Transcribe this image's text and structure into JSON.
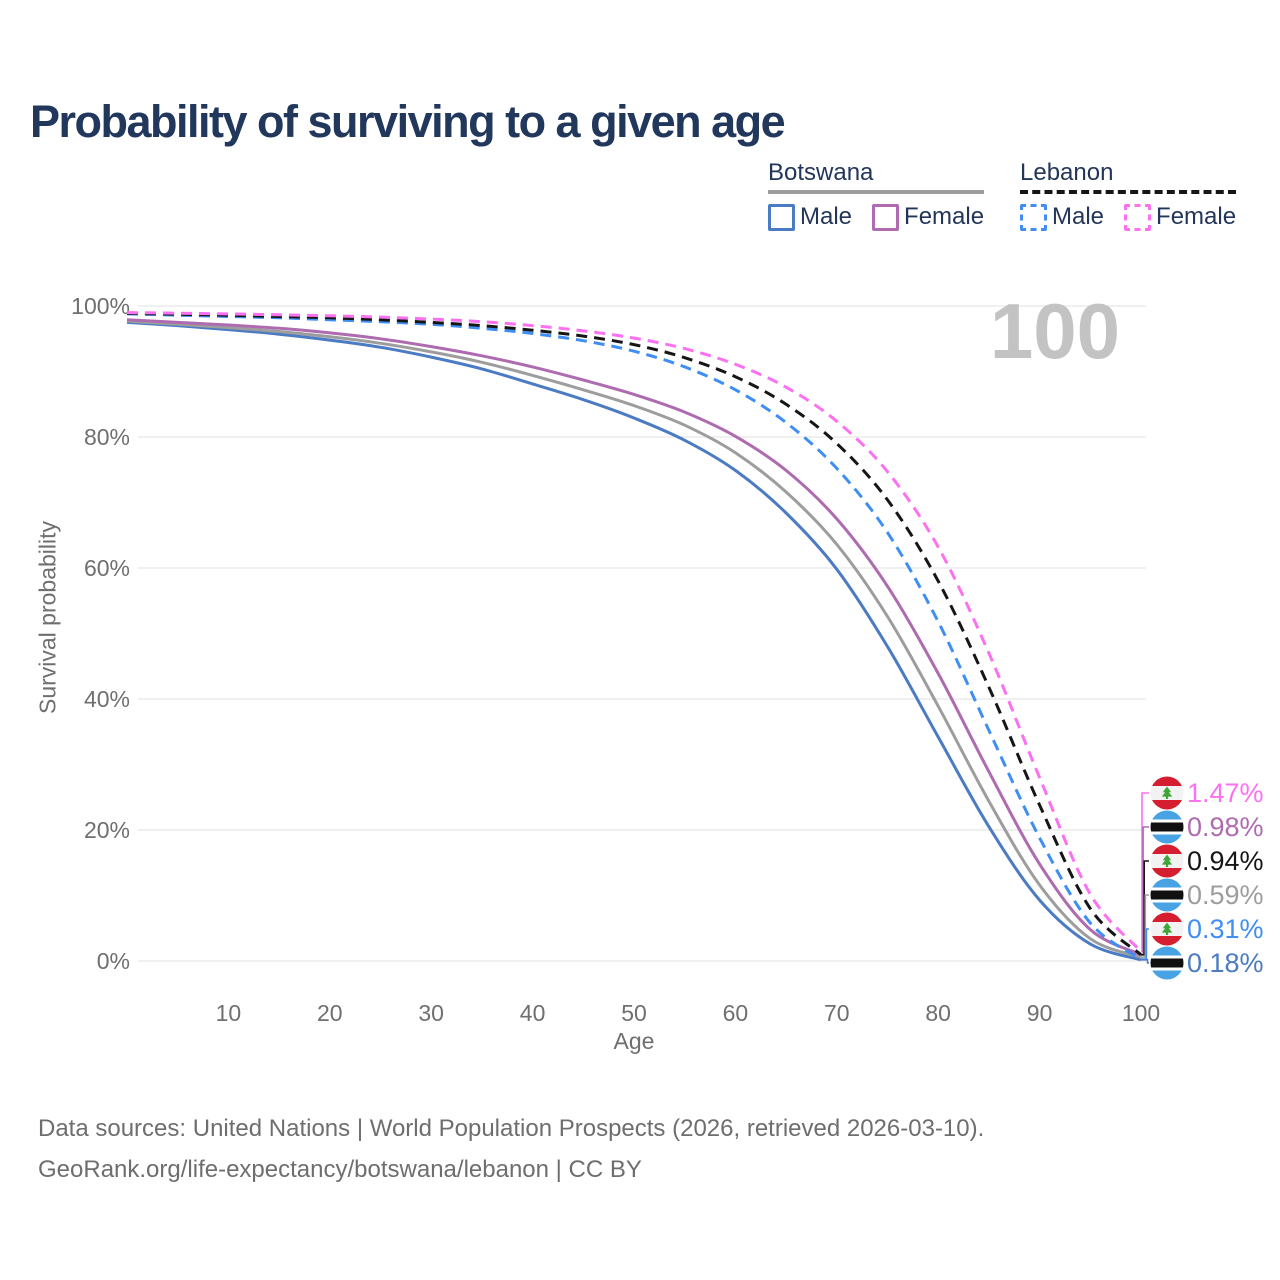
{
  "page": {
    "title": "Probability of surviving to a given age",
    "watermark_age": "100",
    "source_line1": "Data sources: United Nations | World Population Prospects (2026, retrieved 2026-03-10).",
    "source_line2": "GeoRank.org/life-expectancy/botswana/lebanon | CC BY"
  },
  "legend": {
    "groups": [
      {
        "name": "Botswana",
        "line_style": "solid",
        "sample_color": "#9d9d9d",
        "items": [
          {
            "label": "Male",
            "color": "#4b7bc3",
            "dash": false
          },
          {
            "label": "Female",
            "color": "#ae6bb0",
            "dash": false
          }
        ]
      },
      {
        "name": "Lebanon",
        "line_style": "dashed",
        "sample_color": "#161616",
        "items": [
          {
            "label": "Male",
            "color": "#3f8ef4",
            "dash": true
          },
          {
            "label": "Female",
            "color": "#fc70f2",
            "dash": true
          }
        ]
      }
    ]
  },
  "chart_data": {
    "type": "line",
    "title": "Probability of surviving to a given age",
    "xlabel": "Age",
    "ylabel": "Survival probability",
    "xlim": [
      0,
      100
    ],
    "ylim": [
      0,
      100
    ],
    "grid": "horizontal-only",
    "x_ticks": [
      10,
      20,
      30,
      40,
      50,
      60,
      70,
      80,
      90,
      100
    ],
    "y_ticks": [
      {
        "value": 100,
        "label": "100%"
      },
      {
        "value": 80,
        "label": "80%"
      },
      {
        "value": 60,
        "label": "60%"
      },
      {
        "value": 40,
        "label": "40%"
      },
      {
        "value": 20,
        "label": "20%"
      },
      {
        "value": 0,
        "label": "0%"
      }
    ],
    "ages": [
      0,
      5,
      10,
      15,
      20,
      25,
      30,
      35,
      40,
      45,
      50,
      55,
      60,
      65,
      70,
      75,
      80,
      85,
      90,
      95,
      100
    ],
    "series": [
      {
        "name": "Botswana Male",
        "country": "botswana",
        "sex": "male",
        "color": "#4b7bc3",
        "dash": false,
        "values": [
          97.5,
          97.0,
          96.4,
          95.7,
          94.8,
          93.7,
          92.2,
          90.4,
          88.1,
          85.7,
          82.9,
          79.5,
          74.9,
          68.4,
          59.8,
          48.0,
          34.2,
          20.5,
          9.3,
          2.6,
          0.18
        ]
      },
      {
        "name": "Botswana (both sexes)",
        "country": "botswana",
        "sex": "both",
        "color": "#9d9d9d",
        "dash": false,
        "values": [
          97.7,
          97.2,
          96.7,
          96.1,
          95.3,
          94.3,
          93.0,
          91.4,
          89.4,
          87.2,
          84.8,
          81.8,
          77.6,
          71.6,
          63.6,
          52.6,
          38.9,
          24.4,
          11.6,
          3.4,
          0.59
        ]
      },
      {
        "name": "Botswana Female",
        "country": "botswana",
        "sex": "female",
        "color": "#ae6bb0",
        "dash": false,
        "values": [
          97.9,
          97.5,
          97.1,
          96.6,
          95.9,
          95.0,
          93.8,
          92.4,
          90.7,
          88.7,
          86.5,
          83.8,
          80.1,
          74.9,
          67.5,
          57.2,
          43.9,
          28.9,
          14.8,
          4.8,
          0.98
        ]
      },
      {
        "name": "Lebanon Male",
        "country": "lebanon",
        "sex": "male",
        "color": "#3f8ef4",
        "dash": true,
        "values": [
          98.8,
          98.6,
          98.4,
          98.2,
          97.9,
          97.6,
          97.2,
          96.6,
          95.8,
          94.7,
          93.1,
          90.7,
          87.2,
          82.2,
          75.2,
          65.4,
          51.8,
          35.2,
          18.8,
          5.8,
          0.31
        ]
      },
      {
        "name": "Lebanon (both sexes)",
        "country": "lebanon",
        "sex": "both",
        "color": "#161616",
        "dash": true,
        "values": [
          98.9,
          98.75,
          98.6,
          98.4,
          98.2,
          97.9,
          97.5,
          97.0,
          96.3,
          95.4,
          94.1,
          92.1,
          89.2,
          85.0,
          79.0,
          70.4,
          58.0,
          41.8,
          23.8,
          8.0,
          0.94
        ]
      },
      {
        "name": "Lebanon Female",
        "country": "lebanon",
        "sex": "female",
        "color": "#fc70f2",
        "dash": true,
        "values": [
          99.0,
          98.9,
          98.8,
          98.65,
          98.5,
          98.3,
          98.0,
          97.6,
          97.0,
          96.2,
          95.1,
          93.5,
          91.1,
          87.6,
          82.4,
          74.7,
          63.2,
          47.0,
          28.0,
          10.2,
          1.47
        ]
      }
    ],
    "end_labels": [
      {
        "series": "Lebanon Female",
        "country": "lebanon",
        "value": 1.47,
        "text": "1.47%",
        "color": "#fc70f2"
      },
      {
        "series": "Botswana Female",
        "country": "botswana",
        "value": 0.98,
        "text": "0.98%",
        "color": "#ae6bb0"
      },
      {
        "series": "Lebanon (both sexes)",
        "country": "lebanon",
        "value": 0.94,
        "text": "0.94%",
        "color": "#161616"
      },
      {
        "series": "Botswana (both sexes)",
        "country": "botswana",
        "value": 0.59,
        "text": "0.59%",
        "color": "#9d9d9d"
      },
      {
        "series": "Lebanon Male",
        "country": "lebanon",
        "value": 0.31,
        "text": "0.31%",
        "color": "#3f8ef4"
      },
      {
        "series": "Botswana Male",
        "country": "botswana",
        "value": 0.18,
        "text": "0.18%",
        "color": "#4b7bc3"
      }
    ],
    "flag_colors": {
      "lebanon_red": "#d51f30",
      "lebanon_white": "#f2f2f2",
      "lebanon_cedar": "#3fa535",
      "botswana_blue": "#47a3e3",
      "botswana_black": "#101010",
      "botswana_white": "#ffffff"
    }
  }
}
